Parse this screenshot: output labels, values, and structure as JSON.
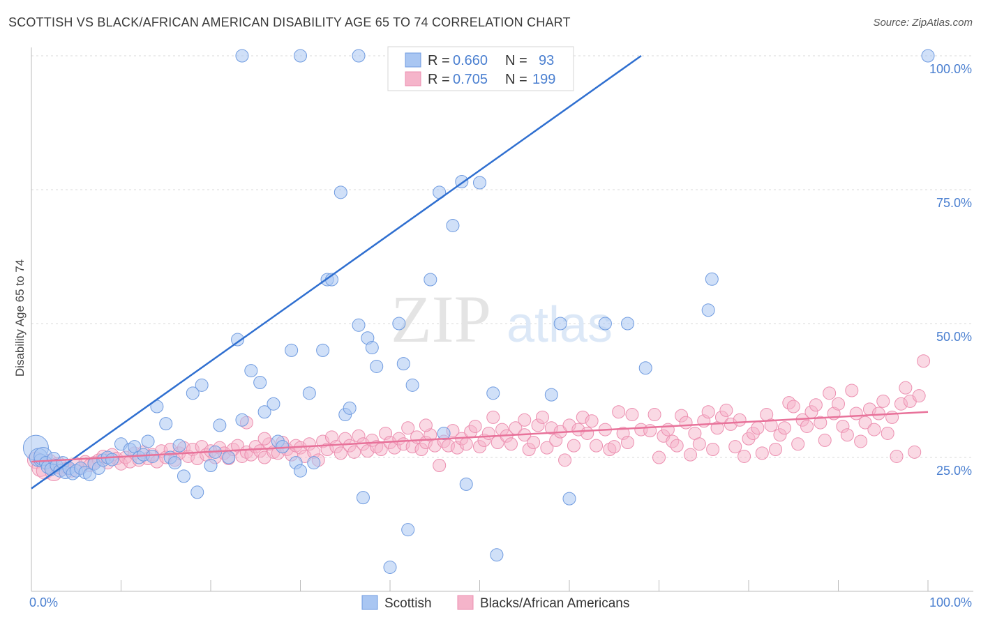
{
  "header": {
    "title": "SCOTTISH VS BLACK/AFRICAN AMERICAN DISABILITY AGE 65 TO 74 CORRELATION CHART",
    "source": "Source: ZipAtlas.com"
  },
  "watermark": {
    "zip": "ZIP",
    "atlas": "atlas"
  },
  "colors": {
    "blue": "#4a7fd0",
    "blue_line": "#2f6fd0",
    "blue_fill": "#a9c6f2",
    "pink": "#e8729a",
    "pink_fill": "#f5b4ca",
    "grid": "#d8d8d8"
  },
  "chart_data": {
    "type": "scatter",
    "title": "SCOTTISH VS BLACK/AFRICAN AMERICAN DISABILITY AGE 65 TO 74 CORRELATION CHART",
    "xlabel": "",
    "ylabel": "Disability Age 65 to 74",
    "xlim": [
      0,
      100
    ],
    "ylim": [
      0,
      100
    ],
    "x_tick_labels": [
      "0.0%",
      "100.0%"
    ],
    "y_tick_labels": [
      "25.0%",
      "50.0%",
      "75.0%",
      "100.0%"
    ],
    "y_ticks": [
      25,
      50,
      75,
      100
    ],
    "grid": true,
    "legend_position": "top-center",
    "stats": [
      {
        "r_label": "R = ",
        "r_value": "0.660",
        "n_label": "N = ",
        "n_value": "93"
      },
      {
        "r_label": "R = ",
        "r_value": "0.705",
        "n_label": "N = ",
        "n_value": "199"
      }
    ],
    "series": [
      {
        "name": "Scottish",
        "color": "#4a7fd0",
        "trend": [
          [
            0,
            19.2
          ],
          [
            100,
            138
          ]
        ],
        "points": [
          [
            0.5,
            26.8
          ],
          [
            0.8,
            25.0
          ],
          [
            1.0,
            24.5
          ],
          [
            1.3,
            25.2
          ],
          [
            1.6,
            24.0
          ],
          [
            1.8,
            23.2
          ],
          [
            2.2,
            22.8
          ],
          [
            2.5,
            24.8
          ],
          [
            2.8,
            23.5
          ],
          [
            3.2,
            22.5
          ],
          [
            3.5,
            24.0
          ],
          [
            3.8,
            22.2
          ],
          [
            4.2,
            23.0
          ],
          [
            4.6,
            22.0
          ],
          [
            5.0,
            22.5
          ],
          [
            5.5,
            23.0
          ],
          [
            6.0,
            22.2
          ],
          [
            6.5,
            21.8
          ],
          [
            7.0,
            23.8
          ],
          [
            7.5,
            23.0
          ],
          [
            8.0,
            24.5
          ],
          [
            8.5,
            25.0
          ],
          [
            9.0,
            24.6
          ],
          [
            10.0,
            27.5
          ],
          [
            11.0,
            26.5
          ],
          [
            11.5,
            27.0
          ],
          [
            12.0,
            25.0
          ],
          [
            12.5,
            25.5
          ],
          [
            13.0,
            28.0
          ],
          [
            13.5,
            25.2
          ],
          [
            14.0,
            34.5
          ],
          [
            15.0,
            31.3
          ],
          [
            15.5,
            25.0
          ],
          [
            16.0,
            24.0
          ],
          [
            16.5,
            27.2
          ],
          [
            17.0,
            21.5
          ],
          [
            18.0,
            37.0
          ],
          [
            18.5,
            18.5
          ],
          [
            19.0,
            38.5
          ],
          [
            20.0,
            23.5
          ],
          [
            20.5,
            26.0
          ],
          [
            21.0,
            31.0
          ],
          [
            22.0,
            25.0
          ],
          [
            23.0,
            47.0
          ],
          [
            23.5,
            32.0
          ],
          [
            24.5,
            41.2
          ],
          [
            25.5,
            39.0
          ],
          [
            26.0,
            33.5
          ],
          [
            27.0,
            35.0
          ],
          [
            27.5,
            28.0
          ],
          [
            28.0,
            27.0
          ],
          [
            29.0,
            45.0
          ],
          [
            29.5,
            24.0
          ],
          [
            30.0,
            22.5
          ],
          [
            31.0,
            37.0
          ],
          [
            31.5,
            24.0
          ],
          [
            32.5,
            45.0
          ],
          [
            33.0,
            58.2
          ],
          [
            33.5,
            58.2
          ],
          [
            34.5,
            74.5
          ],
          [
            35.0,
            33.0
          ],
          [
            35.5,
            34.2
          ],
          [
            36.5,
            49.7
          ],
          [
            37.0,
            17.5
          ],
          [
            37.5,
            47.3
          ],
          [
            38.0,
            45.5
          ],
          [
            38.5,
            42.0
          ],
          [
            41.0,
            50.0
          ],
          [
            41.5,
            42.5
          ],
          [
            42.0,
            11.5
          ],
          [
            42.5,
            38.5
          ],
          [
            44.5,
            58.2
          ],
          [
            45.5,
            74.5
          ],
          [
            46.0,
            29.5
          ],
          [
            47.0,
            68.3
          ],
          [
            48.0,
            76.5
          ],
          [
            48.5,
            20.0
          ],
          [
            50.0,
            76.3
          ],
          [
            51.5,
            37.0
          ],
          [
            51.9,
            6.8
          ],
          [
            58.0,
            36.7
          ],
          [
            60.0,
            17.3
          ],
          [
            59.0,
            50.0
          ],
          [
            64.0,
            50.0
          ],
          [
            66.5,
            50.0
          ],
          [
            68.5,
            41.7
          ],
          [
            75.5,
            52.5
          ],
          [
            75.9,
            58.3
          ],
          [
            40.0,
            4.5
          ],
          [
            100,
            100
          ],
          [
            23.5,
            100
          ],
          [
            30.0,
            100
          ],
          [
            36.5,
            100
          ]
        ]
      },
      {
        "name": "Blacks/African Americans",
        "color": "#e8729a",
        "trend": [
          [
            0,
            24.2
          ],
          [
            100,
            33.5
          ]
        ],
        "points": [
          [
            0.5,
            24.5
          ],
          [
            1.0,
            23.0
          ],
          [
            1.5,
            22.5
          ],
          [
            2.0,
            24.0
          ],
          [
            2.5,
            22.2
          ],
          [
            3.0,
            23.5
          ],
          [
            3.5,
            22.8
          ],
          [
            4.0,
            23.0
          ],
          [
            4.5,
            22.5
          ],
          [
            5.0,
            23.8
          ],
          [
            5.5,
            23.0
          ],
          [
            6.0,
            24.2
          ],
          [
            6.5,
            23.5
          ],
          [
            7.0,
            24.0
          ],
          [
            7.5,
            24.5
          ],
          [
            8.0,
            25.2
          ],
          [
            8.5,
            24.0
          ],
          [
            9.0,
            25.5
          ],
          [
            9.5,
            24.8
          ],
          [
            10.0,
            23.8
          ],
          [
            10.5,
            25.0
          ],
          [
            11.0,
            24.2
          ],
          [
            11.5,
            25.8
          ],
          [
            12.0,
            24.5
          ],
          [
            12.5,
            26.0
          ],
          [
            13.0,
            24.8
          ],
          [
            13.5,
            25.5
          ],
          [
            14.0,
            24.2
          ],
          [
            14.5,
            26.2
          ],
          [
            15.0,
            25.0
          ],
          [
            15.5,
            26.5
          ],
          [
            16.0,
            24.5
          ],
          [
            16.5,
            25.8
          ],
          [
            17.0,
            26.8
          ],
          [
            17.5,
            25.2
          ],
          [
            18.0,
            26.5
          ],
          [
            18.5,
            24.8
          ],
          [
            19.0,
            27.0
          ],
          [
            19.5,
            25.5
          ],
          [
            20.0,
            26.2
          ],
          [
            20.5,
            25.0
          ],
          [
            21.0,
            26.8
          ],
          [
            21.5,
            25.8
          ],
          [
            22.0,
            24.8
          ],
          [
            22.5,
            26.5
          ],
          [
            23.0,
            27.2
          ],
          [
            23.5,
            25.2
          ],
          [
            24.0,
            26.0
          ],
          [
            24.5,
            25.5
          ],
          [
            25.0,
            27.0
          ],
          [
            25.5,
            26.2
          ],
          [
            26.0,
            25.0
          ],
          [
            26.5,
            27.5
          ],
          [
            27.0,
            26.0
          ],
          [
            27.5,
            25.8
          ],
          [
            28.0,
            27.8
          ],
          [
            28.5,
            26.5
          ],
          [
            29.0,
            25.5
          ],
          [
            29.5,
            27.2
          ],
          [
            30.0,
            26.8
          ],
          [
            30.5,
            25.2
          ],
          [
            31.0,
            27.5
          ],
          [
            31.5,
            26.0
          ],
          [
            32.0,
            24.5
          ],
          [
            32.5,
            28.0
          ],
          [
            33.0,
            26.5
          ],
          [
            33.5,
            28.8
          ],
          [
            34.0,
            27.0
          ],
          [
            34.5,
            25.8
          ],
          [
            35.0,
            28.5
          ],
          [
            35.5,
            27.2
          ],
          [
            36.0,
            26.0
          ],
          [
            36.5,
            29.0
          ],
          [
            37.0,
            27.5
          ],
          [
            37.5,
            26.2
          ],
          [
            38.0,
            28.2
          ],
          [
            38.5,
            27.0
          ],
          [
            39.0,
            26.5
          ],
          [
            39.5,
            29.5
          ],
          [
            40.0,
            27.8
          ],
          [
            40.5,
            26.8
          ],
          [
            41.0,
            28.5
          ],
          [
            41.5,
            27.5
          ],
          [
            42.0,
            30.5
          ],
          [
            42.5,
            27.0
          ],
          [
            43.0,
            28.8
          ],
          [
            43.5,
            26.5
          ],
          [
            44.0,
            27.8
          ],
          [
            44.5,
            29.2
          ],
          [
            45.0,
            27.2
          ],
          [
            45.5,
            23.5
          ],
          [
            46.0,
            28.0
          ],
          [
            46.5,
            27.2
          ],
          [
            47.0,
            30.0
          ],
          [
            47.5,
            26.8
          ],
          [
            48.0,
            28.5
          ],
          [
            48.5,
            27.5
          ],
          [
            49.0,
            29.8
          ],
          [
            49.5,
            30.8
          ],
          [
            50.0,
            27.0
          ],
          [
            50.5,
            28.2
          ],
          [
            51.0,
            29.5
          ],
          [
            51.5,
            32.5
          ],
          [
            52.0,
            27.8
          ],
          [
            52.5,
            30.2
          ],
          [
            53.0,
            29.0
          ],
          [
            53.5,
            27.5
          ],
          [
            54.0,
            30.5
          ],
          [
            55.0,
            29.2
          ],
          [
            55.5,
            26.5
          ],
          [
            56.0,
            27.8
          ],
          [
            56.5,
            31.0
          ],
          [
            57.0,
            32.5
          ],
          [
            57.5,
            26.8
          ],
          [
            58.0,
            30.5
          ],
          [
            58.5,
            28.2
          ],
          [
            59.0,
            29.8
          ],
          [
            59.5,
            24.5
          ],
          [
            60.0,
            31.0
          ],
          [
            60.5,
            27.2
          ],
          [
            61.0,
            30.2
          ],
          [
            61.5,
            32.5
          ],
          [
            62.0,
            29.5
          ],
          [
            62.5,
            31.8
          ],
          [
            63.0,
            27.2
          ],
          [
            64.0,
            30.2
          ],
          [
            64.5,
            26.5
          ],
          [
            65.0,
            27.0
          ],
          [
            65.5,
            33.5
          ],
          [
            66.0,
            29.5
          ],
          [
            66.5,
            27.8
          ],
          [
            67.0,
            33.0
          ],
          [
            68.0,
            30.2
          ],
          [
            69.0,
            30.0
          ],
          [
            69.5,
            33.0
          ],
          [
            70.0,
            25.0
          ],
          [
            70.5,
            29.0
          ],
          [
            71.0,
            30.2
          ],
          [
            71.5,
            28.0
          ],
          [
            72.0,
            27.2
          ],
          [
            72.5,
            32.8
          ],
          [
            73.0,
            31.5
          ],
          [
            73.5,
            25.5
          ],
          [
            74.0,
            29.5
          ],
          [
            74.5,
            27.5
          ],
          [
            75.0,
            31.8
          ],
          [
            75.5,
            33.5
          ],
          [
            76.0,
            26.5
          ],
          [
            76.5,
            30.5
          ],
          [
            77.0,
            32.5
          ],
          [
            77.5,
            33.8
          ],
          [
            78.0,
            31.2
          ],
          [
            78.5,
            27.0
          ],
          [
            79.0,
            32.0
          ],
          [
            79.5,
            25.2
          ],
          [
            80.0,
            28.5
          ],
          [
            80.5,
            29.5
          ],
          [
            81.0,
            30.5
          ],
          [
            81.5,
            25.8
          ],
          [
            82.0,
            33.0
          ],
          [
            82.5,
            31.0
          ],
          [
            83.0,
            26.5
          ],
          [
            83.5,
            29.2
          ],
          [
            84.0,
            30.5
          ],
          [
            84.5,
            35.2
          ],
          [
            85.0,
            34.5
          ],
          [
            85.5,
            27.5
          ],
          [
            86.0,
            32.0
          ],
          [
            86.5,
            30.8
          ],
          [
            87.0,
            33.5
          ],
          [
            87.5,
            34.8
          ],
          [
            88.0,
            31.5
          ],
          [
            88.5,
            28.2
          ],
          [
            89.0,
            37.0
          ],
          [
            89.5,
            33.2
          ],
          [
            90.0,
            35.0
          ],
          [
            90.5,
            30.8
          ],
          [
            91.0,
            29.2
          ],
          [
            91.5,
            37.5
          ],
          [
            92.0,
            33.2
          ],
          [
            92.5,
            28.0
          ],
          [
            93.0,
            31.5
          ],
          [
            93.5,
            34.0
          ],
          [
            94.0,
            30.2
          ],
          [
            94.5,
            33.2
          ],
          [
            95.0,
            35.5
          ],
          [
            95.5,
            29.5
          ],
          [
            96.0,
            32.5
          ],
          [
            96.5,
            25.2
          ],
          [
            97.0,
            35.0
          ],
          [
            97.5,
            38.0
          ],
          [
            98.0,
            35.5
          ],
          [
            98.5,
            26.0
          ],
          [
            99.0,
            36.5
          ],
          [
            99.5,
            43.0
          ],
          [
            24.0,
            31.5
          ],
          [
            26.0,
            28.5
          ],
          [
            44.0,
            31.0
          ],
          [
            55.0,
            32.0
          ]
        ]
      }
    ]
  }
}
